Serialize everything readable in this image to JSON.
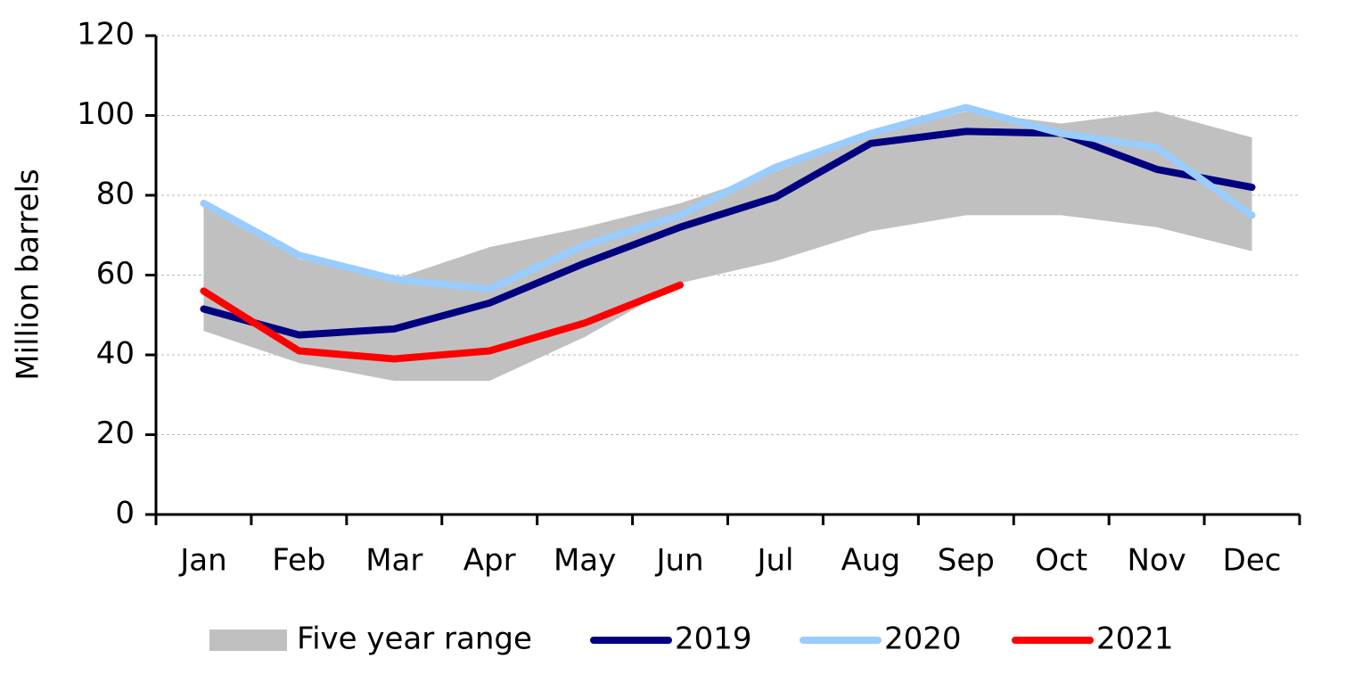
{
  "chart_data": {
    "type": "line",
    "y_label": "Million barrels",
    "categories": [
      "Jan",
      "Feb",
      "Mar",
      "Apr",
      "May",
      "Jun",
      "Jul",
      "Aug",
      "Sep",
      "Oct",
      "Nov",
      "Dec"
    ],
    "series": [
      {
        "name": "Five year range",
        "type": "range",
        "color": "#c0c0c0",
        "upper": [
          77,
          64,
          59,
          67,
          72,
          78,
          86,
          95,
          101,
          98,
          101,
          94.5
        ],
        "lower": [
          46,
          38,
          33.5,
          33.5,
          44.5,
          58,
          63.5,
          71,
          75,
          75,
          72,
          66
        ]
      },
      {
        "name": "2019",
        "color": "#000080",
        "values": [
          51.5,
          45,
          46.5,
          53,
          63,
          72,
          79.5,
          93,
          96,
          95.5,
          86.5,
          82
        ]
      },
      {
        "name": "2020",
        "color": "#99ccff",
        "values": [
          78,
          65,
          59,
          56.5,
          67.5,
          75,
          87,
          95.5,
          102,
          95.5,
          92,
          75
        ]
      },
      {
        "name": "2021",
        "color": "#ff0000",
        "values": [
          56,
          41,
          39,
          41,
          48,
          57.5,
          null,
          null,
          null,
          null,
          null,
          null
        ]
      }
    ],
    "ylim": [
      0,
      120
    ],
    "yticks": [
      0,
      20,
      40,
      60,
      80,
      100,
      120
    ],
    "grid": true,
    "legend": "bottom"
  }
}
